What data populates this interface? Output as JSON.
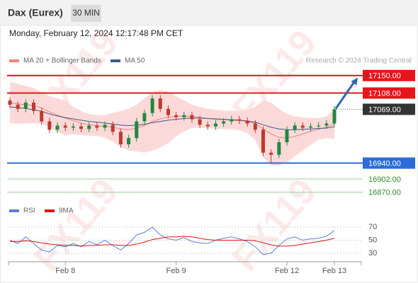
{
  "chart_data": {
    "type": "candlestick",
    "title": "Dax (Eurex)",
    "timeframe": "30 MIN",
    "datetime": "Monday, February 12, 2024 12:17:48 PM CET",
    "credit": "Research © 2024 Trading Central",
    "watermark": "FX119",
    "categories": [
      null,
      null,
      null,
      null,
      null,
      null,
      null,
      "Feb 8",
      null,
      null,
      null,
      null,
      null,
      null,
      null,
      null,
      null,
      null,
      null,
      null,
      null,
      "Feb 9",
      null,
      null,
      null,
      null,
      null,
      null,
      null,
      null,
      null,
      null,
      null,
      null,
      null,
      "Feb 12",
      null,
      null,
      null,
      null,
      null,
      "Feb 13"
    ],
    "open": [
      17090,
      17080,
      17070,
      17085,
      17065,
      17040,
      17020,
      17030,
      17025,
      17028,
      17022,
      17030,
      17025,
      17032,
      17015,
      16985,
      17000,
      17040,
      17060,
      17095,
      17070,
      17055,
      17050,
      17055,
      17045,
      17032,
      17028,
      17035,
      17040,
      17045,
      17042,
      17035,
      17020,
      16965,
      16960,
      16990,
      17020,
      17030,
      17025,
      17028,
      17030,
      17035
    ],
    "high": [
      17098,
      17088,
      17093,
      17093,
      17073,
      17048,
      17038,
      17038,
      17036,
      17036,
      17038,
      17038,
      17040,
      17040,
      17023,
      17008,
      17048,
      17068,
      17103,
      17103,
      17078,
      17063,
      17063,
      17063,
      17053,
      17040,
      17043,
      17048,
      17053,
      17053,
      17050,
      17043,
      17028,
      16973,
      16998,
      17028,
      17038,
      17038,
      17036,
      17038,
      17043,
      17077
    ],
    "low": [
      17072,
      17062,
      17062,
      17057,
      17032,
      17012,
      17012,
      17017,
      17017,
      17014,
      17014,
      17017,
      17017,
      17007,
      16977,
      16977,
      16992,
      17032,
      17052,
      17062,
      17047,
      17042,
      17042,
      17037,
      17024,
      17020,
      17020,
      17027,
      17032,
      17034,
      17027,
      17012,
      16957,
      16940,
      16952,
      16982,
      17012,
      17017,
      17017,
      17020,
      17022,
      17027
    ],
    "close": [
      17080,
      17070,
      17085,
      17065,
      17040,
      17020,
      17030,
      17025,
      17028,
      17022,
      17030,
      17025,
      17032,
      17015,
      16985,
      17000,
      17040,
      17060,
      17095,
      17070,
      17055,
      17050,
      17055,
      17045,
      17032,
      17028,
      17035,
      17040,
      17045,
      17042,
      17035,
      17020,
      16965,
      16960,
      16990,
      17020,
      17030,
      17025,
      17028,
      17030,
      17035,
      17069
    ],
    "up_color": "#1f8a3b",
    "down_color": "#c0392b",
    "band": {
      "name": "MA 20 + Bollinger Bands",
      "color": "#f08080",
      "fill": "#fcd9d9",
      "values": [
        17085,
        17082,
        17080,
        17078,
        17072,
        17063,
        17055,
        17048,
        17042,
        17036,
        17032,
        17030,
        17028,
        17026,
        17022,
        17020,
        17024,
        17030,
        17040,
        17046,
        17050,
        17052,
        17053,
        17052,
        17050,
        17047,
        17045,
        17044,
        17043,
        17042,
        17040,
        17035,
        17022,
        17010,
        17002,
        17000,
        17004,
        17010,
        17016,
        17022,
        17026,
        17034
      ],
      "upper": [
        17135,
        17130,
        17125,
        17120,
        17110,
        17100,
        17095,
        17090,
        17075,
        17065,
        17058,
        17055,
        17055,
        17060,
        17065,
        17070,
        17080,
        17095,
        17110,
        17115,
        17112,
        17100,
        17090,
        17080,
        17075,
        17070,
        17068,
        17066,
        17065,
        17065,
        17068,
        17075,
        17090,
        17085,
        17070,
        17058,
        17052,
        17050,
        17048,
        17048,
        17052,
        17070
      ],
      "lower": [
        17035,
        17034,
        17035,
        17036,
        17034,
        17026,
        17015,
        17006,
        17009,
        17007,
        17006,
        17005,
        17001,
        16992,
        16979,
        16970,
        16968,
        16965,
        16970,
        16977,
        16988,
        17004,
        17016,
        17024,
        17025,
        17024,
        17022,
        17022,
        17021,
        17019,
        17012,
        16995,
        16954,
        16935,
        16934,
        16942,
        16956,
        16970,
        16984,
        16996,
        17000,
        16998
      ]
    },
    "ma50": {
      "name": "MA 50",
      "color": "#3a5a8c",
      "values": [
        17075,
        17073,
        17071,
        17068,
        17064,
        17058,
        17053,
        17049,
        17046,
        17043,
        17040,
        17038,
        17036,
        17034,
        17031,
        17030,
        17031,
        17033,
        17037,
        17040,
        17043,
        17045,
        17047,
        17048,
        17048,
        17047,
        17046,
        17045,
        17044,
        17043,
        17041,
        17038,
        17032,
        17026,
        17022,
        17020,
        17020,
        17021,
        17022,
        17023,
        17024,
        17027
      ]
    },
    "ylim": [
      16850,
      17175
    ],
    "levels": [
      {
        "value": 17150,
        "label": "17150.00",
        "color": "#e8141b",
        "line": "solid",
        "label_style": "box"
      },
      {
        "value": 17108,
        "label": "17108.00",
        "color": "#e8141b",
        "line": "solid",
        "label_style": "box"
      },
      {
        "value": 17069,
        "label": "17069.00",
        "color": "#333333",
        "line": "dotted",
        "label_style": "box"
      },
      {
        "value": 16940,
        "label": "16940.00",
        "color": "#2a6dd9",
        "line": "solid",
        "label_style": "box"
      },
      {
        "value": 16902,
        "label": "16902.00",
        "color": "#2e8b2e",
        "line": "thin",
        "label_style": "text"
      },
      {
        "value": 16870,
        "label": "16870.00",
        "color": "#2e8b2e",
        "line": "thin",
        "label_style": "text"
      }
    ],
    "rsi": {
      "ylim": [
        20,
        80
      ],
      "yticks": [
        70,
        50,
        30
      ],
      "series": [
        {
          "name": "RSI",
          "color": "#5b7fd6",
          "values": [
            50,
            45,
            55,
            45,
            35,
            32,
            42,
            40,
            45,
            40,
            48,
            43,
            50,
            42,
            35,
            45,
            58,
            62,
            70,
            58,
            52,
            50,
            54,
            48,
            46,
            45,
            50,
            53,
            55,
            52,
            48,
            40,
            28,
            30,
            42,
            52,
            55,
            50,
            52,
            53,
            56,
            65
          ]
        },
        {
          "name": "9MA",
          "color": "#e01010",
          "values": [
            48,
            48,
            49,
            48,
            46,
            44,
            43,
            42,
            42,
            41,
            42,
            42,
            43,
            43,
            42,
            42,
            44,
            47,
            51,
            53,
            55,
            55,
            56,
            55,
            53,
            51,
            50,
            50,
            50,
            50,
            50,
            49,
            46,
            43,
            41,
            41,
            42,
            44,
            46,
            48,
            50,
            53
          ]
        }
      ]
    }
  }
}
